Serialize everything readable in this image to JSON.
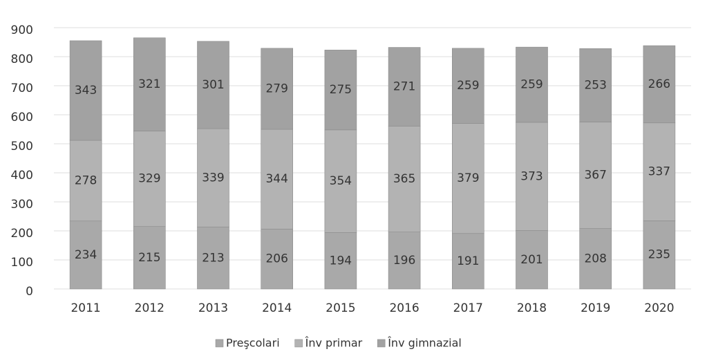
{
  "chart_data": {
    "type": "stacked_bar",
    "categories": [
      "2011",
      "2012",
      "2013",
      "2014",
      "2015",
      "2016",
      "2017",
      "2018",
      "2019",
      "2020"
    ],
    "series": [
      {
        "name": "Preşcolari",
        "color": "#a9a9a9",
        "values": [
          234,
          215,
          213,
          206,
          194,
          196,
          191,
          201,
          208,
          235
        ]
      },
      {
        "name": "Înv primar",
        "color": "#b3b3b3",
        "values": [
          278,
          329,
          339,
          344,
          354,
          365,
          379,
          373,
          367,
          337
        ]
      },
      {
        "name": "Înv gimnazial",
        "color": "#a2a2a2",
        "values": [
          343,
          321,
          301,
          279,
          275,
          271,
          259,
          259,
          253,
          266
        ]
      }
    ],
    "ylim": [
      0,
      900
    ],
    "yticks": [
      0,
      100,
      200,
      300,
      400,
      500,
      600,
      700,
      800,
      900
    ],
    "grid": true
  }
}
